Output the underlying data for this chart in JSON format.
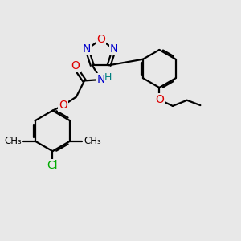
{
  "bg_color": "#e8e8e8",
  "bond_color": "#000000",
  "N_color": "#0000cc",
  "O_color": "#dd0000",
  "Cl_color": "#00aa00",
  "H_color": "#008080",
  "line_width": 1.6,
  "font_size": 10,
  "xlim": [
    0,
    10
  ],
  "ylim": [
    0,
    10
  ],
  "figsize": [
    3.0,
    3.0
  ],
  "dpi": 100
}
